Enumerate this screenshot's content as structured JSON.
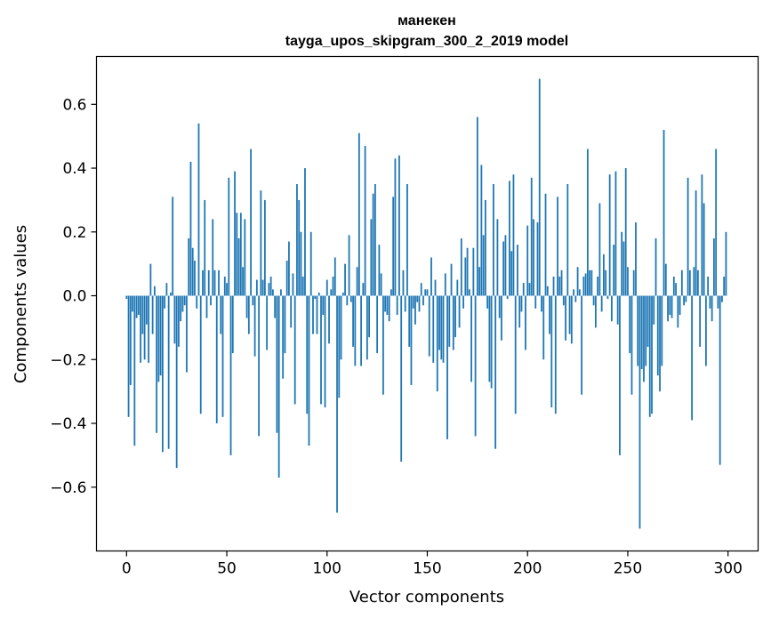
{
  "chart_data": {
    "type": "bar",
    "title_line1": "манекен",
    "title_line2": "tayga_upos_skipgram_300_2_2019 model",
    "xlabel": "Vector components",
    "ylabel": "Components values",
    "xlim": [
      -15,
      315
    ],
    "ylim": [
      -0.8,
      0.75
    ],
    "xticks": [
      0,
      50,
      100,
      150,
      200,
      250,
      300
    ],
    "yticks": [
      -0.6,
      -0.4,
      -0.2,
      0.0,
      0.2,
      0.4,
      0.6
    ],
    "ytick_labels": [
      "−0.6",
      "−0.4",
      "−0.2",
      "0.0",
      "0.2",
      "0.4",
      "0.6"
    ],
    "bar_color": "#1f77b4",
    "values": [
      -0.01,
      -0.38,
      -0.28,
      -0.05,
      -0.47,
      -0.07,
      -0.06,
      -0.21,
      -0.12,
      -0.2,
      -0.09,
      -0.21,
      0.1,
      -0.12,
      0.03,
      -0.43,
      -0.27,
      -0.25,
      -0.49,
      -0.04,
      0.04,
      -0.48,
      0.01,
      0.31,
      -0.15,
      -0.54,
      -0.16,
      -0.08,
      -0.05,
      -0.03,
      -0.24,
      0.18,
      0.42,
      0.15,
      0.11,
      -0.04,
      0.54,
      -0.37,
      0.08,
      0.3,
      -0.07,
      0.08,
      -0.03,
      0.24,
      0.08,
      -0.4,
      0.08,
      -0.12,
      -0.38,
      0.06,
      0.04,
      0.37,
      -0.5,
      -0.18,
      0.39,
      0.26,
      0.18,
      0.26,
      0.09,
      0.24,
      -0.07,
      -0.12,
      0.46,
      -0.03,
      -0.19,
      0.05,
      -0.44,
      0.33,
      0.05,
      0.3,
      -0.17,
      0.04,
      0.06,
      0.02,
      -0.07,
      -0.43,
      -0.57,
      0.02,
      -0.26,
      -0.18,
      0.11,
      0.17,
      -0.1,
      0.07,
      -0.34,
      0.35,
      0.3,
      0.2,
      0.06,
      0.4,
      -0.37,
      -0.47,
      0.2,
      -0.12,
      -0.01,
      -0.12,
      0.01,
      -0.34,
      -0.06,
      -0.35,
      0.05,
      -0.15,
      0.02,
      0.06,
      0.12,
      -0.68,
      -0.32,
      -0.2,
      0.01,
      0.1,
      -0.03,
      0.19,
      -0.02,
      -0.16,
      -0.22,
      0.09,
      0.51,
      -0.22,
      0.04,
      0.47,
      -0.2,
      -0.13,
      0.24,
      0.32,
      0.35,
      -0.18,
      0.16,
      0.07,
      -0.31,
      -0.05,
      -0.06,
      -0.08,
      0.02,
      0.31,
      0.43,
      -0.06,
      0.44,
      -0.52,
      0.08,
      -0.05,
      0.35,
      -0.16,
      -0.28,
      -0.04,
      -0.09,
      -0.02,
      -0.05,
      0.04,
      -0.03,
      0.02,
      0.02,
      -0.19,
      0.12,
      -0.21,
      0.05,
      -0.3,
      -0.17,
      -0.2,
      -0.21,
      0.07,
      -0.45,
      -0.16,
      0.1,
      -0.17,
      -0.13,
      0.05,
      -0.1,
      0.18,
      -0.04,
      0.12,
      0.15,
      0.02,
      -0.27,
      0.15,
      -0.44,
      0.56,
      0.09,
      0.41,
      0.19,
      0.3,
      -0.04,
      -0.27,
      -0.29,
      0.35,
      -0.48,
      0.24,
      -0.07,
      -0.14,
      0.17,
      0.19,
      -0.01,
      0.36,
      0.14,
      0.38,
      -0.37,
      0.16,
      -0.1,
      -0.05,
      0.04,
      -0.17,
      0.22,
      0.04,
      0.37,
      0.24,
      -0.04,
      0.23,
      0.68,
      -0.05,
      -0.2,
      0.32,
      0.03,
      -0.12,
      -0.35,
      0.06,
      -0.37,
      0.31,
      0.06,
      0.08,
      -0.03,
      -0.14,
      0.35,
      -0.12,
      -0.15,
      0.02,
      -0.02,
      0.09,
      0.02,
      -0.31,
      0.06,
      0.07,
      0.46,
      0.08,
      0.08,
      -0.03,
      -0.1,
      0.06,
      0.29,
      -0.05,
      0.13,
      0.08,
      -0.01,
      0.38,
      -0.08,
      0.16,
      0.39,
      -0.09,
      -0.5,
      0.2,
      0.17,
      0.4,
      0.09,
      -0.18,
      -0.31,
      0.08,
      0.23,
      -0.22,
      -0.73,
      -0.23,
      -0.27,
      -0.22,
      -0.16,
      -0.38,
      -0.37,
      -0.09,
      0.18,
      -0.25,
      -0.3,
      -0.22,
      0.52,
      0.1,
      -0.08,
      -0.06,
      -0.07,
      0.06,
      0.04,
      -0.1,
      -0.06,
      0.08,
      -0.03,
      -0.02,
      0.37,
      0.08,
      -0.39,
      0.09,
      0.33,
      0.08,
      -0.16,
      0.38,
      0.29,
      -0.22,
      0.06,
      -0.04,
      -0.08,
      0.18,
      0.46,
      -0.04,
      -0.53,
      -0.02,
      0.06,
      0.2
    ]
  }
}
